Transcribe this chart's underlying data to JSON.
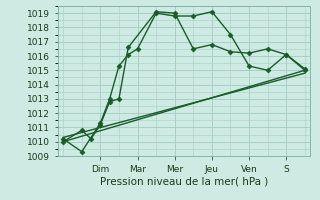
{
  "background_color": "#cdeae3",
  "grid_color": "#a8cfc7",
  "line_color": "#1a5c28",
  "xlabel": "Pression niveau de la mer( hPa )",
  "ylim": [
    1009,
    1019.5
  ],
  "yticks": [
    1009,
    1010,
    1011,
    1012,
    1013,
    1014,
    1015,
    1016,
    1017,
    1018,
    1019
  ],
  "xlim": [
    -0.3,
    13.3
  ],
  "x_tick_positions": [
    2,
    4,
    6,
    8,
    10,
    12
  ],
  "x_labels": [
    "Dim",
    "Mar",
    "Mer",
    "Jeu",
    "Ven",
    "S"
  ],
  "series1_x": [
    0,
    1,
    2,
    2.5,
    3,
    3.5,
    4,
    5,
    6,
    7,
    8,
    9,
    10,
    11,
    12,
    13
  ],
  "series1_y": [
    1010.2,
    1009.3,
    1011.3,
    1013.0,
    1015.3,
    1016.1,
    1016.5,
    1019.0,
    1018.8,
    1018.8,
    1019.1,
    1017.5,
    1015.3,
    1015.0,
    1016.1,
    1015.1
  ],
  "series2_x": [
    0,
    1,
    1.5,
    2,
    2.5,
    3,
    3.5,
    5,
    6,
    7,
    8,
    9,
    10,
    11,
    12,
    13
  ],
  "series2_y": [
    1010.0,
    1010.8,
    1010.2,
    1011.2,
    1012.8,
    1013.0,
    1016.6,
    1019.1,
    1019.0,
    1016.5,
    1016.8,
    1016.3,
    1016.2,
    1016.5,
    1016.1,
    1015.0
  ],
  "series3_x": [
    0,
    13
  ],
  "series3_y": [
    1010.0,
    1015.0
  ],
  "series4_x": [
    0,
    13
  ],
  "series4_y": [
    1010.3,
    1014.8
  ],
  "marker": "D",
  "marker_size": 2.5,
  "line_width": 1.0,
  "xlabel_fontsize": 7.5,
  "tick_fontsize": 6.5
}
